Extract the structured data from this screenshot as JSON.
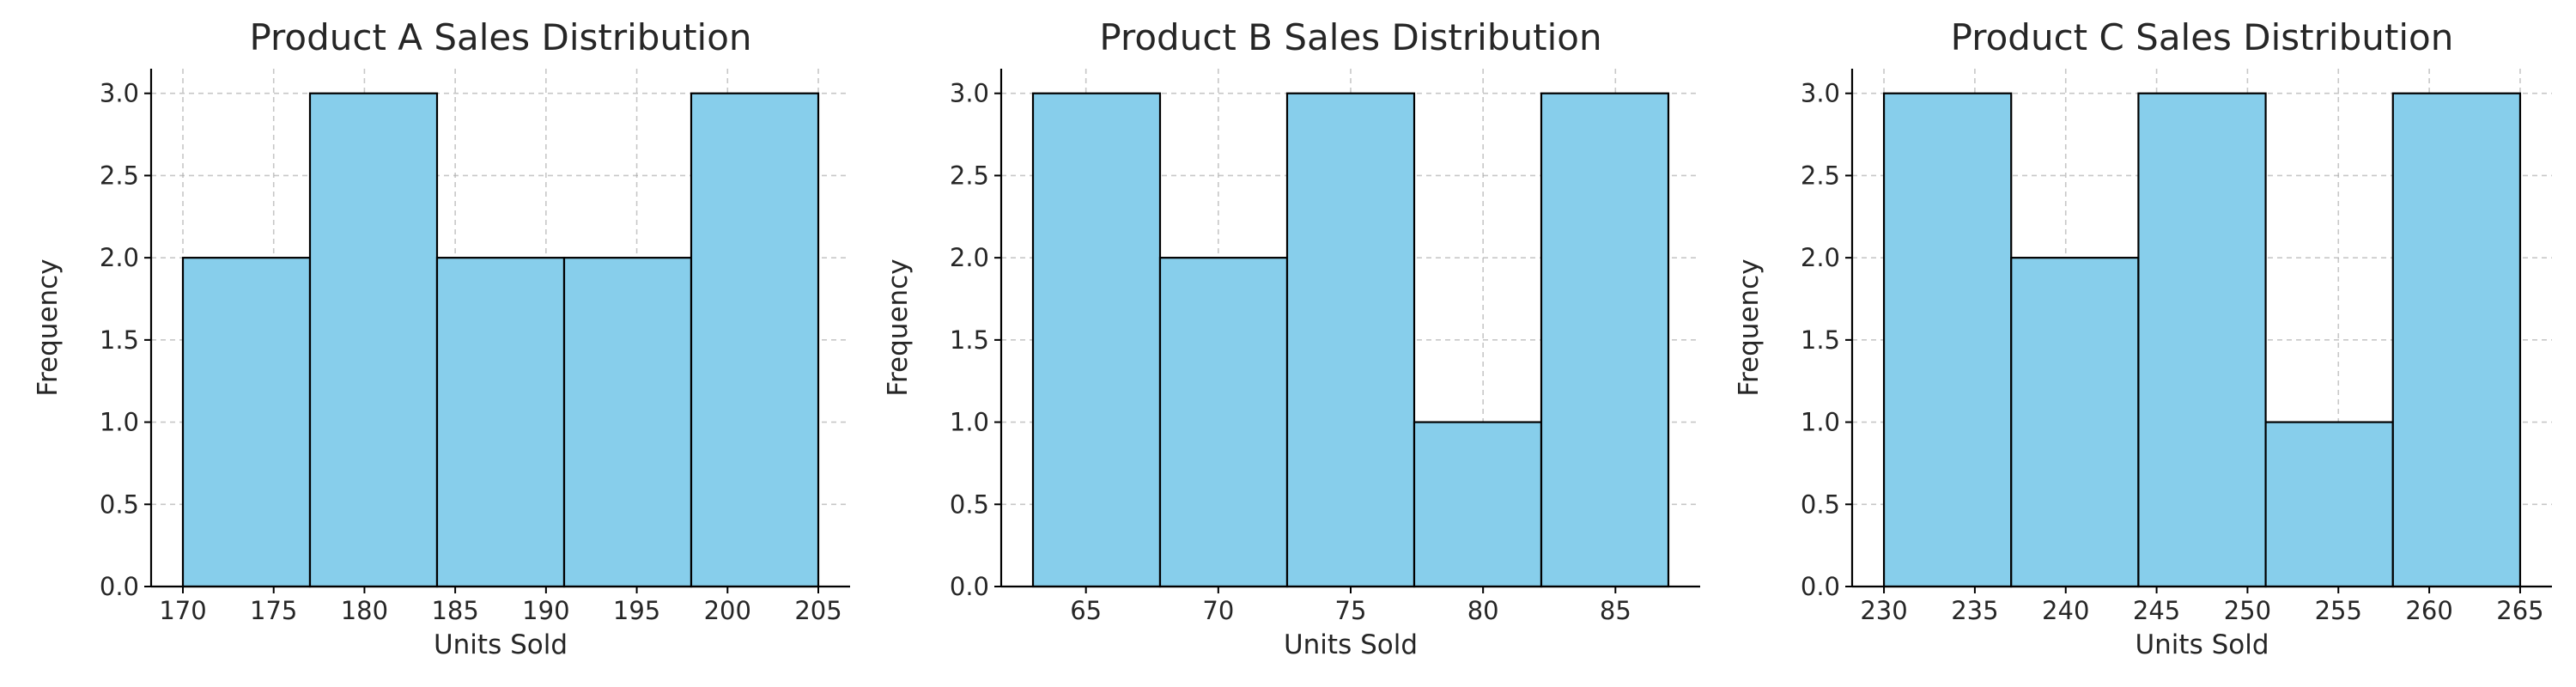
{
  "chart_data": [
    {
      "type": "bar",
      "title": "Product A Sales Distribution",
      "xlabel": "Units Sold",
      "ylabel": "Frequency",
      "bin_edges": [
        170,
        177,
        184,
        191,
        198,
        205
      ],
      "values": [
        2,
        3,
        2,
        2,
        3
      ],
      "xlim": [
        168.25,
        206.75
      ],
      "ylim": [
        0,
        3.15
      ],
      "xticks": [
        170,
        175,
        180,
        185,
        190,
        195,
        200,
        205
      ],
      "yticks": [
        "0.0",
        "0.5",
        "1.0",
        "1.5",
        "2.0",
        "2.5",
        "3.0"
      ],
      "color": "#87CEEB",
      "edge_color": "#000000",
      "grid": true
    },
    {
      "type": "bar",
      "title": "Product B Sales Distribution",
      "xlabel": "Units Sold",
      "ylabel": "Frequency",
      "bin_edges": [
        63,
        67.8,
        72.6,
        77.4,
        82.2,
        87
      ],
      "values": [
        3,
        2,
        3,
        1,
        3
      ],
      "xlim": [
        61.8,
        88.2
      ],
      "ylim": [
        0,
        3.15
      ],
      "xticks": [
        65,
        70,
        75,
        80,
        85
      ],
      "yticks": [
        "0.0",
        "0.5",
        "1.0",
        "1.5",
        "2.0",
        "2.5",
        "3.0"
      ],
      "color": "#87CEEB",
      "edge_color": "#000000",
      "grid": true
    },
    {
      "type": "bar",
      "title": "Product C Sales Distribution",
      "xlabel": "Units Sold",
      "ylabel": "Frequency",
      "bin_edges": [
        230,
        237,
        244,
        251,
        258,
        265
      ],
      "values": [
        3,
        2,
        3,
        1,
        3
      ],
      "xlim": [
        228.25,
        266.75
      ],
      "ylim": [
        0,
        3.15
      ],
      "xticks": [
        230,
        235,
        240,
        245,
        250,
        255,
        260,
        265
      ],
      "yticks": [
        "0.0",
        "0.5",
        "1.0",
        "1.5",
        "2.0",
        "2.5",
        "3.0"
      ],
      "color": "#87CEEB",
      "edge_color": "#000000",
      "grid": true
    }
  ]
}
